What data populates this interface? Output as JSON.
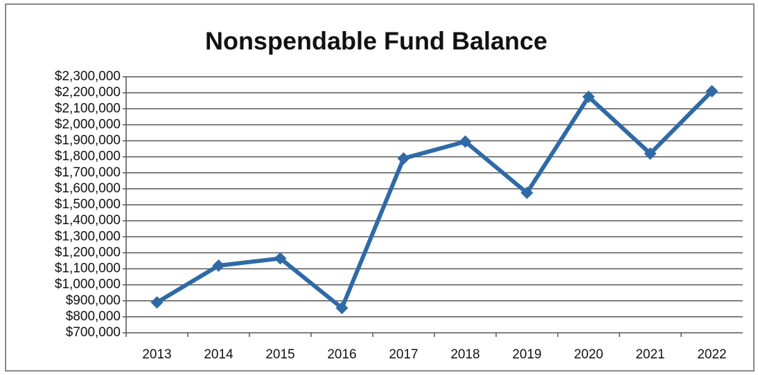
{
  "chart_data": {
    "type": "line",
    "title": "Nonspendable Fund Balance",
    "categories": [
      "2013",
      "2014",
      "2015",
      "2016",
      "2017",
      "2018",
      "2019",
      "2020",
      "2021",
      "2022"
    ],
    "series": [
      {
        "name": "Nonspendable Fund Balance",
        "color": "#2f6aa6",
        "values": [
          890000,
          1120000,
          1165000,
          855000,
          1790000,
          1895000,
          1575000,
          2175000,
          1820000,
          2210000
        ]
      }
    ],
    "ylim": [
      700000,
      2300000
    ],
    "yticks": [
      {
        "value": 700000,
        "label": "$700,000"
      },
      {
        "value": 800000,
        "label": "$800,000"
      },
      {
        "value": 900000,
        "label": "$900,000"
      },
      {
        "value": 1000000,
        "label": "$1,000,000"
      },
      {
        "value": 1100000,
        "label": "$1,100,000"
      },
      {
        "value": 1200000,
        "label": "$1,200,000"
      },
      {
        "value": 1300000,
        "label": "$1,300,000"
      },
      {
        "value": 1400000,
        "label": "$1,400,000"
      },
      {
        "value": 1500000,
        "label": "$1,500,000"
      },
      {
        "value": 1600000,
        "label": "$1,600,000"
      },
      {
        "value": 1700000,
        "label": "$1,700,000"
      },
      {
        "value": 1800000,
        "label": "$1,800,000"
      },
      {
        "value": 1900000,
        "label": "$1,900,000"
      },
      {
        "value": 2000000,
        "label": "$2,000,000"
      },
      {
        "value": 2100000,
        "label": "$2,100,000"
      },
      {
        "value": 2200000,
        "label": "$2,200,000"
      },
      {
        "value": 2300000,
        "label": "$2,300,000"
      }
    ],
    "grid": true
  }
}
